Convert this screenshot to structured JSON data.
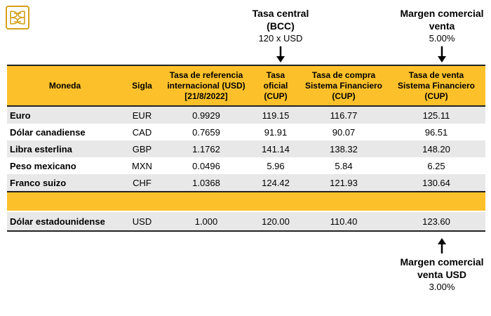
{
  "logo": {
    "name": "bcc-logo"
  },
  "annotations": {
    "central_rate": {
      "title_line1": "Tasa central",
      "title_line2": "(BCC)",
      "value": "120 x USD"
    },
    "margin_sale": {
      "title_line1": "Margen comercial",
      "title_line2": "venta",
      "value": "5.00%"
    },
    "margin_usd": {
      "title_line1": "Margen comercial",
      "title_line2": "venta USD",
      "value": "3.00%"
    }
  },
  "table": {
    "headers": {
      "moneda": "Moneda",
      "sigla": "Sigla",
      "ref_line1": "Tasa de referencia",
      "ref_line2": "internacional (USD)",
      "ref_line3": "[21/8/2022]",
      "oficial_line1": "Tasa",
      "oficial_line2": "oficial",
      "oficial_line3": "(CUP)",
      "compra_line1": "Tasa de compra",
      "compra_line2": "Sistema Financiero",
      "compra_line3": "(CUP)",
      "venta_line1": "Tasa de venta",
      "venta_line2": "Sistema Financiero",
      "venta_line3": "(CUP)"
    },
    "rows": [
      {
        "moneda": "Euro",
        "sigla": "EUR",
        "ref": "0.9929",
        "oficial": "119.15",
        "compra": "116.77",
        "venta": "125.11"
      },
      {
        "moneda": "Dólar canadiense",
        "sigla": "CAD",
        "ref": "0.7659",
        "oficial": "91.91",
        "compra": "90.07",
        "venta": "96.51"
      },
      {
        "moneda": "Libra esterlina",
        "sigla": "GBP",
        "ref": "1.1762",
        "oficial": "141.14",
        "compra": "138.32",
        "venta": "148.20"
      },
      {
        "moneda": "Peso mexicano",
        "sigla": "MXN",
        "ref": "0.0496",
        "oficial": "5.96",
        "compra": "5.84",
        "venta": "6.25"
      },
      {
        "moneda": "Franco suizo",
        "sigla": "CHF",
        "ref": "1.0368",
        "oficial": "124.42",
        "compra": "121.93",
        "venta": "130.64"
      }
    ],
    "usd_row": {
      "moneda": "Dólar estadounidense",
      "sigla": "USD",
      "ref": "1.000",
      "oficial": "120.00",
      "compra": "110.40",
      "venta": "123.60"
    }
  },
  "colors": {
    "header": "#fcc12a",
    "stripe": "#e8e8e8",
    "logo": "#d4a017"
  }
}
